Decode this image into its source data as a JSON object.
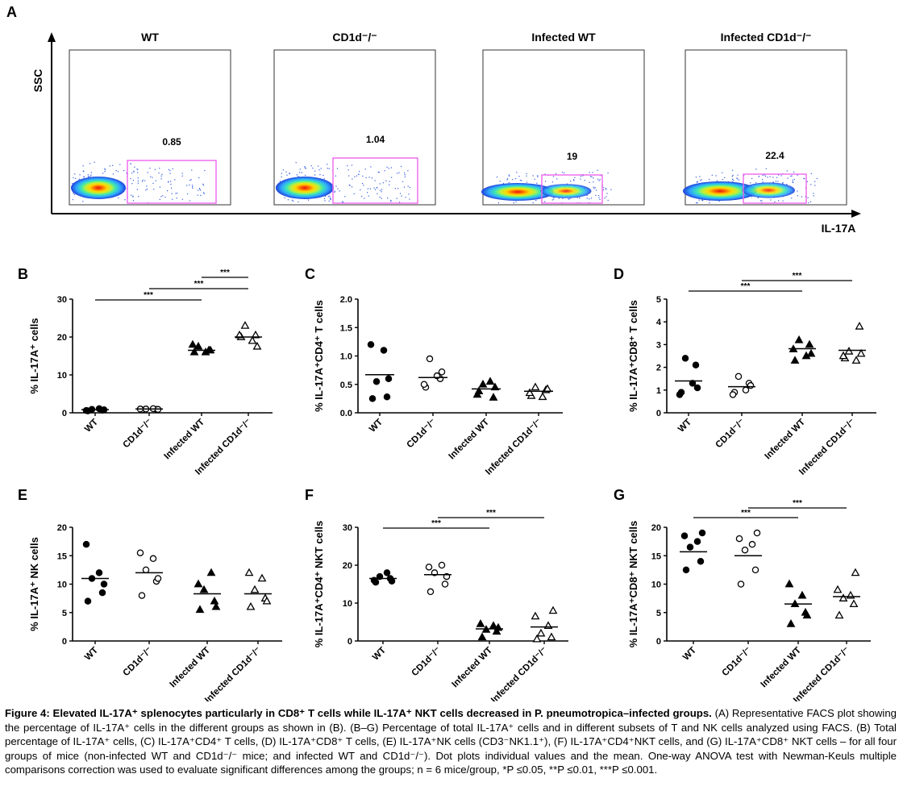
{
  "panel_a": {
    "letter": "A",
    "y_axis_label": "SSC",
    "x_axis_label": "IL-17A",
    "plots": [
      {
        "title": "WT",
        "gate_value": "0.85"
      },
      {
        "title": "CD1d⁻/⁻",
        "gate_value": "1.04"
      },
      {
        "title": "Infected WT",
        "gate_value": "19"
      },
      {
        "title": "Infected CD1d⁻/⁻",
        "gate_value": "22.4"
      }
    ],
    "colors": {
      "gate": "#ee66ee",
      "density": [
        "#1f3fd8",
        "#2fa8ff",
        "#3fe8b0",
        "#b8f040",
        "#ffd800",
        "#ff7a00",
        "#e81010"
      ]
    }
  },
  "chart_data": [
    {
      "type": "scatter",
      "letter": "B",
      "ylabel": "% IL-17A⁺ cells",
      "ylim": [
        0,
        30
      ],
      "yticks": [
        "0",
        "10",
        "20",
        "30"
      ],
      "categories": [
        "WT",
        "CD1d⁻/⁻",
        "Infected WT",
        "Infected CD1d⁻/⁻"
      ],
      "markers": [
        "filled-circle",
        "open-circle",
        "filled-triangle",
        "open-triangle"
      ],
      "values": [
        [
          0.5,
          0.7,
          0.9,
          1.1,
          0.6,
          0.8
        ],
        [
          0.8,
          0.9,
          1.0,
          1.1,
          1.0,
          0.9
        ],
        [
          16.0,
          16.5,
          17.5,
          16.0,
          18.0,
          16.5
        ],
        [
          20.0,
          20.5,
          23.0,
          19.0,
          20.5,
          17.5
        ]
      ],
      "means": [
        0.85,
        1.0,
        16.5,
        20.0
      ],
      "significance": [
        {
          "from": 0,
          "to": 2,
          "label": "***"
        },
        {
          "from": 1,
          "to": 3,
          "label": "***"
        },
        {
          "from": 2,
          "to": 3,
          "label": "***"
        }
      ]
    },
    {
      "type": "scatter",
      "letter": "C",
      "ylabel": "% IL-17A⁺CD4⁺ T cells",
      "ylim": [
        0,
        2.0
      ],
      "yticks": [
        "0.0",
        "0.5",
        "1.0",
        "1.5",
        "2.0"
      ],
      "categories": [
        "WT",
        "CD1d⁻/⁻",
        "Infected WT",
        "Infected CD1d⁻/⁻"
      ],
      "markers": [
        "filled-circle",
        "open-circle",
        "filled-triangle",
        "open-triangle"
      ],
      "values": [
        [
          0.25,
          0.28,
          0.55,
          1.1,
          1.2,
          0.6
        ],
        [
          0.45,
          0.6,
          0.95,
          0.65,
          0.5,
          0.72
        ],
        [
          0.38,
          0.27,
          0.5,
          0.55,
          0.32,
          0.45
        ],
        [
          0.3,
          0.4,
          0.45,
          0.28,
          0.35,
          0.42
        ]
      ],
      "means": [
        0.67,
        0.62,
        0.42,
        0.38
      ],
      "significance": []
    },
    {
      "type": "scatter",
      "letter": "D",
      "ylabel": "% IL-17A⁺CD8⁺ T cells",
      "ylim": [
        0,
        5
      ],
      "yticks": [
        "0",
        "1",
        "2",
        "3",
        "4",
        "5"
      ],
      "categories": [
        "WT",
        "CD1d⁻/⁻",
        "Infected WT",
        "Infected CD1d⁻/⁻"
      ],
      "markers": [
        "filled-circle",
        "open-circle",
        "filled-triangle",
        "open-triangle"
      ],
      "values": [
        [
          0.9,
          2.1,
          2.4,
          1.3,
          0.8,
          1.1
        ],
        [
          0.9,
          1.3,
          1.6,
          1.0,
          0.8,
          1.2
        ],
        [
          2.3,
          3.0,
          3.2,
          2.5,
          2.8,
          2.6
        ],
        [
          2.4,
          3.8,
          2.7,
          2.3,
          2.5,
          2.6
        ]
      ],
      "means": [
        1.4,
        1.15,
        2.82,
        2.75
      ],
      "significance": [
        {
          "from": 0,
          "to": 2,
          "label": "***"
        },
        {
          "from": 1,
          "to": 3,
          "label": "***"
        }
      ]
    },
    {
      "type": "scatter",
      "letter": "E",
      "ylabel": "% IL-17A⁺ NK cells",
      "ylim": [
        0,
        20
      ],
      "yticks": [
        "0",
        "5",
        "10",
        "15",
        "20"
      ],
      "categories": [
        "WT",
        "CD1d⁻/⁻",
        "Infected WT",
        "Infected CD1d⁻/⁻"
      ],
      "markers": [
        "filled-circle",
        "open-circle",
        "filled-triangle",
        "open-triangle"
      ],
      "values": [
        [
          7.0,
          8.5,
          11.0,
          12.0,
          17.0,
          10.0
        ],
        [
          8.0,
          10.5,
          12.5,
          14.5,
          15.5,
          11.0
        ],
        [
          5.5,
          7.0,
          9.0,
          12.0,
          10.0,
          6.0
        ],
        [
          6.0,
          7.5,
          9.0,
          11.0,
          12.0,
          7.0
        ]
      ],
      "means": [
        11.0,
        12.0,
        8.3,
        8.3
      ],
      "significance": []
    },
    {
      "type": "scatter",
      "letter": "F",
      "ylabel": "% IL-17A⁺CD4⁺ NKT cells",
      "ylim": [
        0,
        30
      ],
      "yticks": [
        "0",
        "10",
        "20",
        "30"
      ],
      "categories": [
        "WT",
        "CD1d⁻/⁻",
        "Infected WT",
        "Infected CD1d⁻/⁻"
      ],
      "markers": [
        "filled-circle",
        "open-circle",
        "filled-triangle",
        "open-triangle"
      ],
      "values": [
        [
          15.5,
          16.5,
          17.0,
          18.0,
          16.0,
          15.8
        ],
        [
          13.0,
          15.0,
          18.0,
          20.0,
          19.5,
          17.0
        ],
        [
          1.0,
          2.5,
          3.0,
          4.0,
          4.5,
          3.5
        ],
        [
          0.5,
          1.0,
          2.0,
          4.0,
          6.5,
          8.0
        ]
      ],
      "means": [
        16.5,
        17.5,
        3.2,
        3.7
      ],
      "significance": [
        {
          "from": 0,
          "to": 2,
          "label": "***"
        },
        {
          "from": 1,
          "to": 3,
          "label": "***"
        }
      ]
    },
    {
      "type": "scatter",
      "letter": "G",
      "ylabel": "% IL-17A⁺CD8⁺ NKT cells",
      "ylim": [
        0,
        20
      ],
      "yticks": [
        "0",
        "5",
        "10",
        "15",
        "20"
      ],
      "categories": [
        "WT",
        "CD1d⁻/⁻",
        "Infected WT",
        "Infected CD1d⁻/⁻"
      ],
      "markers": [
        "filled-circle",
        "open-circle",
        "filled-triangle",
        "open-triangle"
      ],
      "values": [
        [
          12.5,
          14.0,
          16.5,
          17.5,
          18.5,
          19.0
        ],
        [
          10.0,
          12.5,
          16.0,
          17.0,
          18.0,
          19.0
        ],
        [
          3.0,
          5.0,
          6.5,
          8.0,
          10.0,
          4.5
        ],
        [
          4.5,
          6.5,
          7.5,
          8.0,
          9.0,
          12.0
        ]
      ],
      "means": [
        15.7,
        15.0,
        6.5,
        7.8
      ],
      "significance": [
        {
          "from": 0,
          "to": 2,
          "label": "***"
        },
        {
          "from": 1,
          "to": 3,
          "label": "***"
        }
      ]
    }
  ],
  "caption": {
    "title": "Figure 4: Elevated IL-17A⁺ splenocytes particularly in CD8⁺ T cells while IL-17A⁺ NKT cells decreased in P. pneumotropica–infected groups.",
    "body": "(A) Representative FACS plot showing the percentage of IL-17A⁺ cells in the different groups as shown in (B). (B–G) Percentage of total IL-17A⁺ cells and in different subsets of T and NK cells analyzed using FACS. (B) Total percentage of IL-17A⁺ cells, (C) IL-17A⁺CD4⁺ T cells, (D) IL-17A⁺CD8⁺ T cells, (E) IL-17A⁺NK cells (CD3⁻NK1.1⁺), (F) IL-17A⁺CD4⁺NKT cells, and (G) IL-17A⁺CD8⁺ NKT cells – for all four groups of mice (non-infected WT and CD1d⁻/⁻ mice; and infected WT and CD1d⁻/⁻). Dot plots individual values and the mean. One-way ANOVA test with Newman-Keuls multiple comparisons correction was used to evaluate significant differences among the groups; n = 6 mice/group, *P ≤0.05, **P ≤0.01, ***P ≤0.001."
  }
}
